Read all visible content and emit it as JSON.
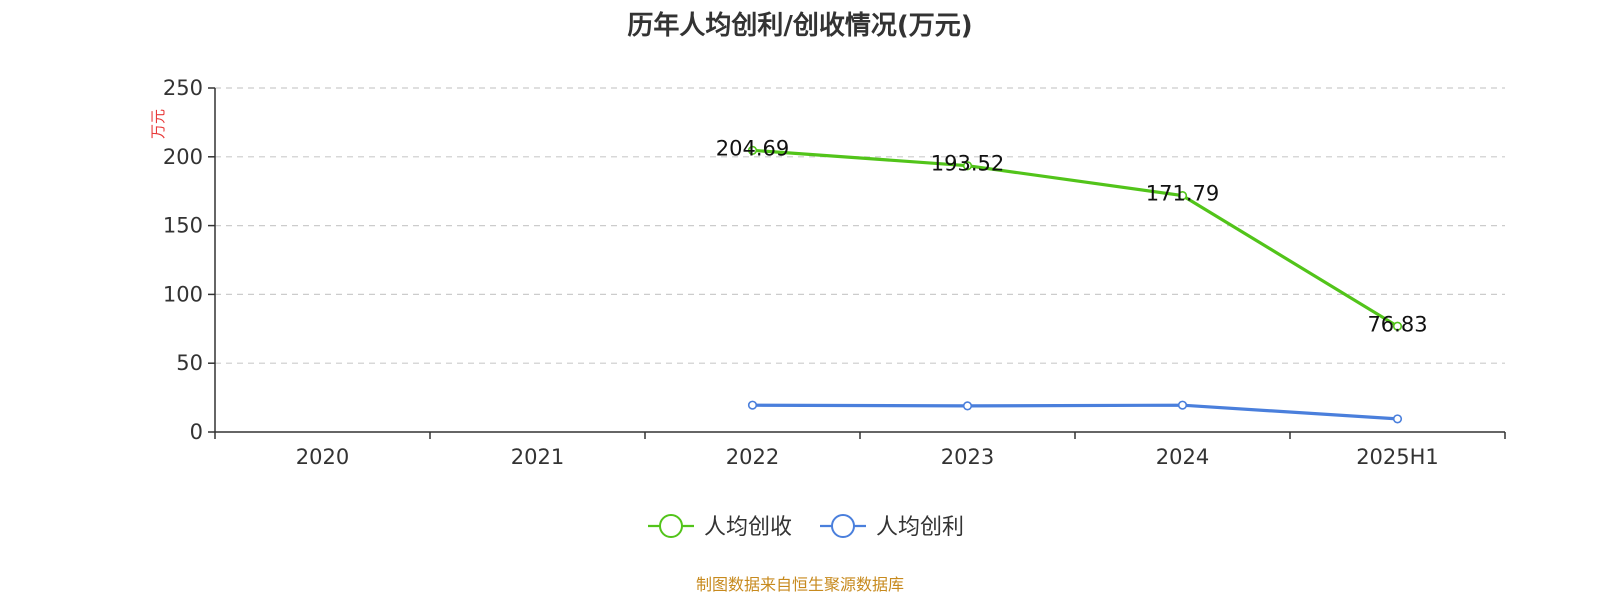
{
  "chart_data": {
    "type": "line",
    "title": "历年人均创利/创收情况(万元)",
    "ylabel": "万元",
    "xlabel": "",
    "categories": [
      "2020",
      "2021",
      "2022",
      "2023",
      "2024",
      "2025H1"
    ],
    "ylim": [
      0,
      250
    ],
    "yticks": [
      0,
      50,
      100,
      150,
      200,
      250
    ],
    "grid": true,
    "legend_position": "bottom",
    "series": [
      {
        "name": "人均创收",
        "color": "#52c41a",
        "values": [
          null,
          null,
          204.69,
          193.52,
          171.79,
          76.83
        ],
        "labels": [
          "",
          "",
          "204.69",
          "193.52",
          "171.79",
          "76.83"
        ]
      },
      {
        "name": "人均创利",
        "color": "#4a7fdc",
        "values": [
          null,
          null,
          19.5,
          19.0,
          19.5,
          9.5
        ],
        "labels": []
      }
    ]
  },
  "source": "制图数据来自恒生聚源数据库"
}
